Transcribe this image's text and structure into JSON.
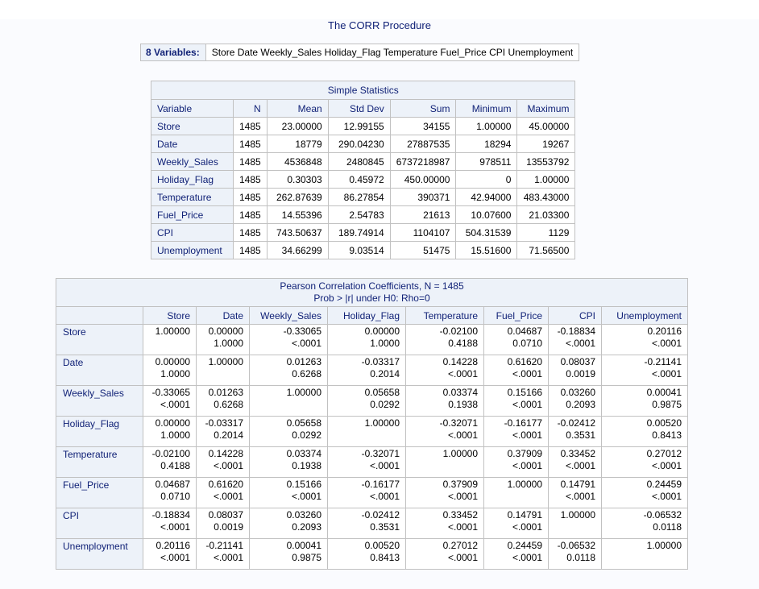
{
  "procedure_title": "The CORR Procedure",
  "variables_box": {
    "label": "8 Variables:",
    "value": "Store Date Weekly_Sales Holiday_Flag Temperature Fuel_Price CPI Unemployment"
  },
  "simple_statistics": {
    "caption": "Simple Statistics",
    "columns": [
      "Variable",
      "N",
      "Mean",
      "Std Dev",
      "Sum",
      "Minimum",
      "Maximum"
    ],
    "rows": [
      [
        "Store",
        "1485",
        "23.00000",
        "12.99155",
        "34155",
        "1.00000",
        "45.00000"
      ],
      [
        "Date",
        "1485",
        "18779",
        "290.04230",
        "27887535",
        "18294",
        "19267"
      ],
      [
        "Weekly_Sales",
        "1485",
        "4536848",
        "2480845",
        "6737218987",
        "978511",
        "13553792"
      ],
      [
        "Holiday_Flag",
        "1485",
        "0.30303",
        "0.45972",
        "450.00000",
        "0",
        "1.00000"
      ],
      [
        "Temperature",
        "1485",
        "262.87639",
        "86.27854",
        "390371",
        "42.94000",
        "483.43000"
      ],
      [
        "Fuel_Price",
        "1485",
        "14.55396",
        "2.54783",
        "21613",
        "10.07600",
        "21.03300"
      ],
      [
        "CPI",
        "1485",
        "743.50637",
        "189.74914",
        "1104107",
        "504.31539",
        "1129"
      ],
      [
        "Unemployment",
        "1485",
        "34.66299",
        "9.03514",
        "51475",
        "15.51600",
        "71.56500"
      ]
    ]
  },
  "pearson": {
    "caption_line1": "Pearson Correlation Coefficients, N = 1485",
    "caption_line2": "Prob > |r| under H0: Rho=0",
    "columns": [
      "Store",
      "Date",
      "Weekly_Sales",
      "Holiday_Flag",
      "Temperature",
      "Fuel_Price",
      "CPI",
      "Unemployment"
    ],
    "rows": [
      {
        "name": "Store",
        "cells": [
          [
            "1.00000",
            ""
          ],
          [
            "0.00000",
            "1.0000"
          ],
          [
            "-0.33065",
            "<.0001"
          ],
          [
            "0.00000",
            "1.0000"
          ],
          [
            "-0.02100",
            "0.4188"
          ],
          [
            "0.04687",
            "0.0710"
          ],
          [
            "-0.18834",
            "<.0001"
          ],
          [
            "0.20116",
            "<.0001"
          ]
        ]
      },
      {
        "name": "Date",
        "cells": [
          [
            "0.00000",
            "1.0000"
          ],
          [
            "1.00000",
            ""
          ],
          [
            "0.01263",
            "0.6268"
          ],
          [
            "-0.03317",
            "0.2014"
          ],
          [
            "0.14228",
            "<.0001"
          ],
          [
            "0.61620",
            "<.0001"
          ],
          [
            "0.08037",
            "0.0019"
          ],
          [
            "-0.21141",
            "<.0001"
          ]
        ]
      },
      {
        "name": "Weekly_Sales",
        "cells": [
          [
            "-0.33065",
            "<.0001"
          ],
          [
            "0.01263",
            "0.6268"
          ],
          [
            "1.00000",
            ""
          ],
          [
            "0.05658",
            "0.0292"
          ],
          [
            "0.03374",
            "0.1938"
          ],
          [
            "0.15166",
            "<.0001"
          ],
          [
            "0.03260",
            "0.2093"
          ],
          [
            "0.00041",
            "0.9875"
          ]
        ]
      },
      {
        "name": "Holiday_Flag",
        "cells": [
          [
            "0.00000",
            "1.0000"
          ],
          [
            "-0.03317",
            "0.2014"
          ],
          [
            "0.05658",
            "0.0292"
          ],
          [
            "1.00000",
            ""
          ],
          [
            "-0.32071",
            "<.0001"
          ],
          [
            "-0.16177",
            "<.0001"
          ],
          [
            "-0.02412",
            "0.3531"
          ],
          [
            "0.00520",
            "0.8413"
          ]
        ]
      },
      {
        "name": "Temperature",
        "cells": [
          [
            "-0.02100",
            "0.4188"
          ],
          [
            "0.14228",
            "<.0001"
          ],
          [
            "0.03374",
            "0.1938"
          ],
          [
            "-0.32071",
            "<.0001"
          ],
          [
            "1.00000",
            ""
          ],
          [
            "0.37909",
            "<.0001"
          ],
          [
            "0.33452",
            "<.0001"
          ],
          [
            "0.27012",
            "<.0001"
          ]
        ]
      },
      {
        "name": "Fuel_Price",
        "cells": [
          [
            "0.04687",
            "0.0710"
          ],
          [
            "0.61620",
            "<.0001"
          ],
          [
            "0.15166",
            "<.0001"
          ],
          [
            "-0.16177",
            "<.0001"
          ],
          [
            "0.37909",
            "<.0001"
          ],
          [
            "1.00000",
            ""
          ],
          [
            "0.14791",
            "<.0001"
          ],
          [
            "0.24459",
            "<.0001"
          ]
        ]
      },
      {
        "name": "CPI",
        "cells": [
          [
            "-0.18834",
            "<.0001"
          ],
          [
            "0.08037",
            "0.0019"
          ],
          [
            "0.03260",
            "0.2093"
          ],
          [
            "-0.02412",
            "0.3531"
          ],
          [
            "0.33452",
            "<.0001"
          ],
          [
            "0.14791",
            "<.0001"
          ],
          [
            "1.00000",
            ""
          ],
          [
            "-0.06532",
            "0.0118"
          ]
        ]
      },
      {
        "name": "Unemployment",
        "cells": [
          [
            "0.20116",
            "<.0001"
          ],
          [
            "-0.21141",
            "<.0001"
          ],
          [
            "0.00041",
            "0.9875"
          ],
          [
            "0.00520",
            "0.8413"
          ],
          [
            "0.27012",
            "<.0001"
          ],
          [
            "0.24459",
            "<.0001"
          ],
          [
            "-0.06532",
            "0.0118"
          ],
          [
            "1.00000",
            ""
          ]
        ]
      }
    ]
  }
}
